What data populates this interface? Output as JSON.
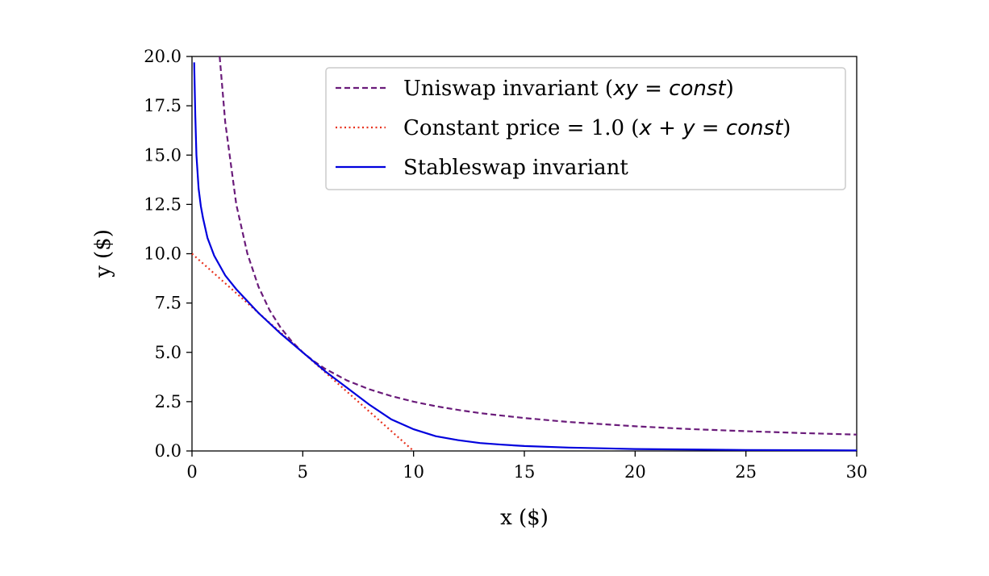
{
  "chart_data": {
    "type": "line",
    "xlabel": "x ($)",
    "ylabel": "y ($)",
    "xlim": [
      0,
      30
    ],
    "ylim": [
      0,
      20
    ],
    "xticks": [
      "0",
      "5",
      "10",
      "15",
      "20",
      "25",
      "30"
    ],
    "yticks": [
      "0.0",
      "2.5",
      "5.0",
      "7.5",
      "10.0",
      "12.5",
      "15.0",
      "17.5",
      "20.0"
    ],
    "grid": false,
    "legend_position": "upper-right",
    "series": [
      {
        "name": "Uniswap invariant (xy = const)",
        "style": "dashed",
        "color": "#6a1b7a",
        "x": [
          1.25,
          1.5,
          2,
          2.5,
          3,
          3.5,
          4,
          4.5,
          5,
          5.5,
          6,
          7,
          8,
          9,
          10,
          11,
          12,
          13,
          14,
          15,
          17,
          20,
          22.5,
          25,
          27.5,
          30
        ],
        "y": [
          20.0,
          16.67,
          12.5,
          10.0,
          8.33,
          7.14,
          6.25,
          5.56,
          5.0,
          4.55,
          4.17,
          3.57,
          3.13,
          2.78,
          2.5,
          2.27,
          2.08,
          1.92,
          1.79,
          1.67,
          1.47,
          1.25,
          1.11,
          1.0,
          0.91,
          0.83
        ]
      },
      {
        "name": "Constant price = 1.0 (x + y = const)",
        "style": "dotted",
        "color": "#e8321e",
        "x": [
          0,
          10
        ],
        "y": [
          10,
          0
        ]
      },
      {
        "name": "Stableswap invariant",
        "style": "solid",
        "color": "#0000dd",
        "x": [
          0.1,
          0.15,
          0.2,
          0.3,
          0.4,
          0.5,
          0.7,
          1.0,
          1.5,
          2.0,
          3.0,
          4.0,
          5.0,
          6.0,
          7.0,
          8.0,
          9.0,
          10.0,
          11.0,
          12.0,
          13.0,
          14.0,
          15.0,
          17.0,
          20.0,
          25.0,
          30.0
        ],
        "y": [
          19.7,
          17.0,
          15.0,
          13.3,
          12.4,
          11.8,
          10.8,
          9.9,
          8.9,
          8.2,
          7.0,
          5.95,
          5.0,
          4.05,
          3.2,
          2.35,
          1.6,
          1.1,
          0.75,
          0.55,
          0.4,
          0.32,
          0.25,
          0.17,
          0.1,
          0.05,
          0.03
        ]
      }
    ]
  }
}
